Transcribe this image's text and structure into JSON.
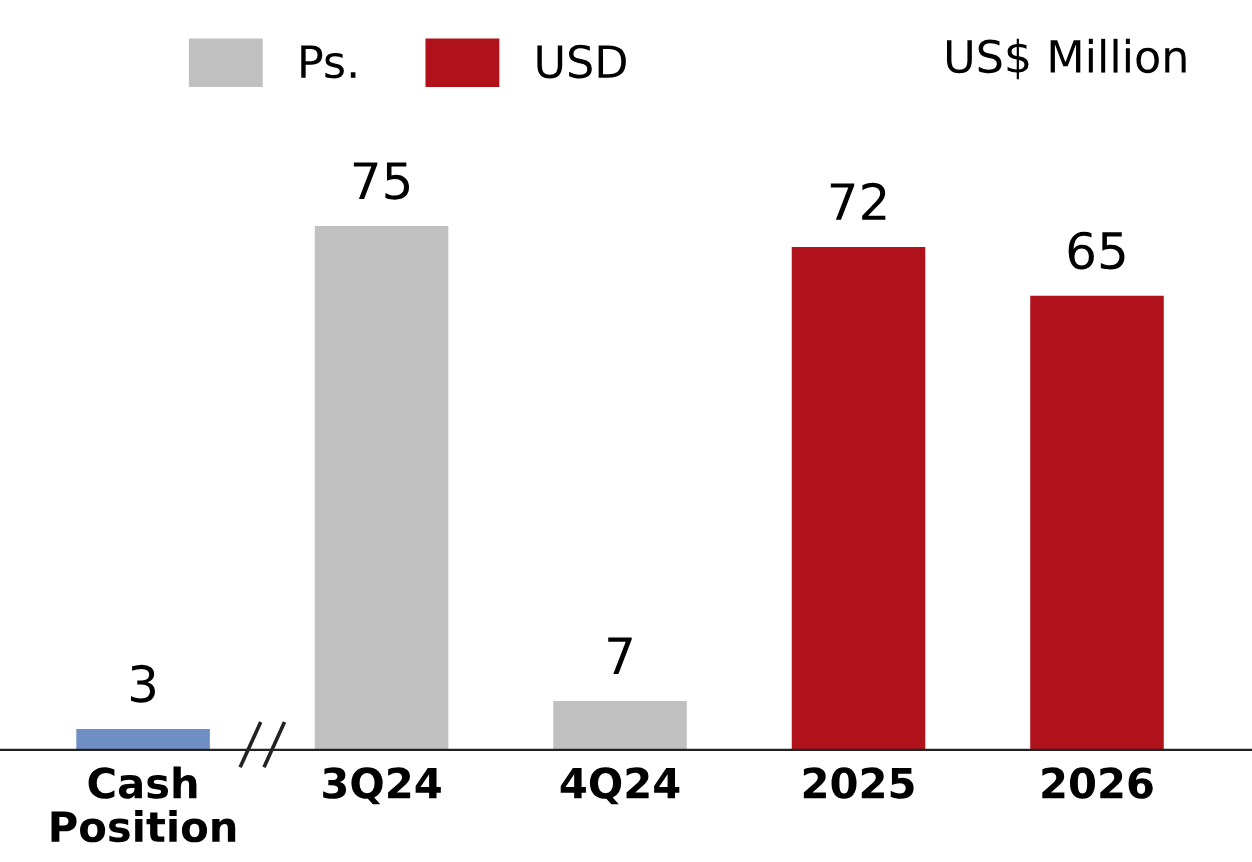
{
  "chart_data": {
    "type": "bar",
    "categories": [
      "Cash\nPosition",
      "3Q24",
      "4Q24",
      "2025",
      "2026"
    ],
    "series": [
      {
        "color": "#6f8fc4",
        "values": [
          3,
          null,
          null,
          null,
          null
        ]
      },
      {
        "name": "Ps.",
        "color": "#c0c0c0",
        "values": [
          null,
          75,
          7,
          null,
          null
        ]
      },
      {
        "name": "USD",
        "color": "#b0121b",
        "values": [
          null,
          null,
          null,
          72,
          65
        ]
      }
    ],
    "data_labels": true,
    "legend": "top left",
    "annotations": [
      "US$ Million"
    ],
    "grid": false
  }
}
